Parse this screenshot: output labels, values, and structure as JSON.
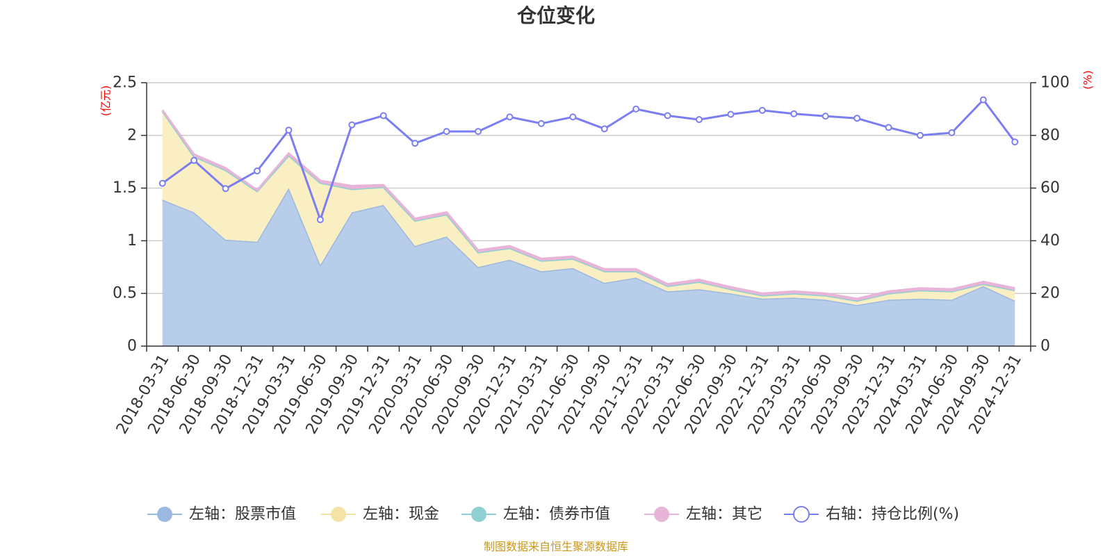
{
  "chart_data": {
    "type": "area",
    "title": "仓位变化",
    "left_axis": {
      "label": "(亿元)",
      "ylim": [
        0,
        2.5
      ],
      "ticks": [
        "0",
        "0.5",
        "1",
        "1.5",
        "2",
        "2.5"
      ],
      "tick_values": [
        0,
        0.5,
        1,
        1.5,
        2,
        2.5
      ]
    },
    "right_axis": {
      "label": "(%)",
      "ylim": [
        0,
        100
      ],
      "ticks": [
        "0",
        "20",
        "40",
        "60",
        "80",
        "100"
      ],
      "tick_values": [
        0,
        20,
        40,
        60,
        80,
        100
      ]
    },
    "categories": [
      "2018-03-31",
      "2018-06-30",
      "2018-09-30",
      "2018-12-31",
      "2019-03-31",
      "2019-06-30",
      "2019-09-30",
      "2019-12-31",
      "2020-03-31",
      "2020-06-30",
      "2020-09-30",
      "2020-12-31",
      "2021-03-31",
      "2021-06-30",
      "2021-09-30",
      "2021-12-31",
      "2022-03-31",
      "2022-06-30",
      "2022-09-30",
      "2022-12-31",
      "2023-03-31",
      "2023-06-30",
      "2023-09-30",
      "2023-12-31",
      "2024-03-31",
      "2024-06-30",
      "2024-09-30",
      "2024-12-31"
    ],
    "series": [
      {
        "name": "左轴：股票市值",
        "axis": "left",
        "color": "#9bb8e0",
        "fill": "#b8cdea",
        "values": [
          1.39,
          1.27,
          1.01,
          0.99,
          1.5,
          0.77,
          1.27,
          1.34,
          0.95,
          1.04,
          0.75,
          0.82,
          0.71,
          0.74,
          0.6,
          0.65,
          0.52,
          0.54,
          0.5,
          0.45,
          0.46,
          0.44,
          0.39,
          0.44,
          0.45,
          0.44,
          0.57,
          0.43
        ]
      },
      {
        "name": "左轴：现金",
        "axis": "left",
        "color": "#f5e3a6",
        "fill": "#faeec3",
        "values": [
          0.84,
          0.53,
          0.66,
          0.48,
          0.31,
          0.78,
          0.22,
          0.17,
          0.24,
          0.21,
          0.14,
          0.11,
          0.1,
          0.09,
          0.11,
          0.06,
          0.05,
          0.07,
          0.04,
          0.03,
          0.04,
          0.04,
          0.04,
          0.06,
          0.08,
          0.08,
          0.02,
          0.1
        ]
      },
      {
        "name": "左轴：债券市值",
        "axis": "left",
        "color": "#8fd0d3",
        "fill": "#8fd0d3",
        "values": [
          0,
          0,
          0,
          0,
          0,
          0,
          0,
          0,
          0,
          0,
          0,
          0,
          0,
          0,
          0,
          0,
          0,
          0,
          0,
          0,
          0,
          0,
          0,
          0,
          0,
          0,
          0,
          0
        ]
      },
      {
        "name": "左轴：其它",
        "axis": "left",
        "color": "#e8b4d8",
        "fill": "#e8b4d8",
        "values": [
          0.01,
          0.02,
          0.02,
          0.01,
          0.02,
          0.02,
          0.03,
          0.02,
          0.02,
          0.02,
          0.02,
          0.02,
          0.02,
          0.02,
          0.02,
          0.02,
          0.02,
          0.02,
          0.02,
          0.02,
          0.02,
          0.02,
          0.02,
          0.02,
          0.02,
          0.02,
          0.02,
          0.02
        ]
      },
      {
        "name": "右轴：持仓比例(%)",
        "axis": "right",
        "color": "#7b7ef0",
        "values": [
          61.8,
          70.5,
          59.8,
          66.5,
          82.0,
          48.0,
          84.0,
          87.5,
          77.0,
          81.5,
          81.5,
          87.0,
          84.5,
          87.0,
          82.5,
          90.0,
          87.5,
          86.0,
          88.0,
          89.5,
          88.2,
          87.3,
          86.5,
          83.0,
          80.0,
          81.0,
          93.5,
          77.5
        ]
      }
    ]
  },
  "legend": [
    {
      "label": "左轴：股票市值",
      "color": "#9bb8e0",
      "style": "filled"
    },
    {
      "label": "左轴：现金",
      "color": "#f5e3a6",
      "style": "filled"
    },
    {
      "label": "左轴：债券市值",
      "color": "#8fd0d3",
      "style": "filled"
    },
    {
      "label": "左轴：其它",
      "color": "#e8b4d8",
      "style": "filled"
    },
    {
      "label": "右轴：持仓比例(%)",
      "color": "#7b7ef0",
      "style": "hollow"
    }
  ],
  "source": "制图数据来自恒生聚源数据库"
}
